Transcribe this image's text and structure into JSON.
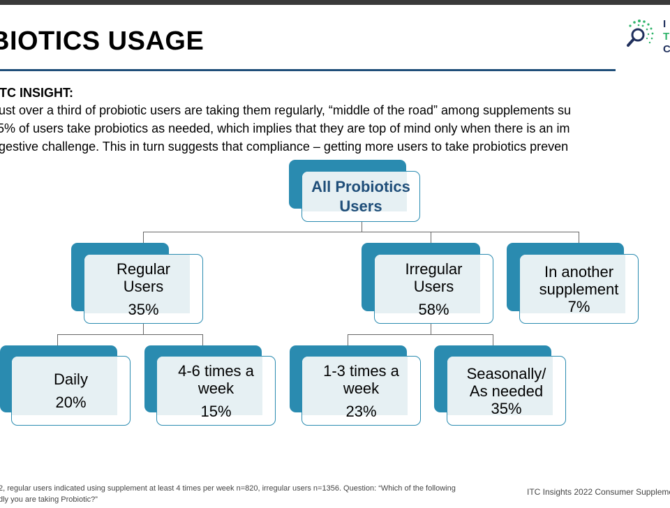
{
  "slide": {
    "title": "BIOTICS USAGE",
    "insight_heading": "ITC INSIGHT:",
    "insight_lines": [
      "ust over a third of probiotic users are taking them regularly, “middle of the road” among supplements su",
      "5% of users take probiotics as needed, which implies that they are top of mind only when there is an im",
      "gestive challenge. This in turn suggests that compliance – getting more users to take probiotics preven"
    ]
  },
  "logo": {
    "icon": "magnifier-dots-icon",
    "letters": [
      "I",
      "T",
      "C"
    ]
  },
  "tree": {
    "root": {
      "lines": [
        "All Probiotics",
        "Users"
      ]
    },
    "regular": {
      "label_lines": [
        "Regular",
        "Users"
      ],
      "value": "35%"
    },
    "irregular": {
      "label_lines": [
        "Irregular",
        "Users"
      ],
      "value": "58%"
    },
    "other": {
      "label_lines": [
        "In another",
        "supplement"
      ],
      "value": "7%"
    },
    "daily": {
      "label_lines": [
        "Daily"
      ],
      "value": "20%"
    },
    "four_six": {
      "label_lines": [
        "4-6 times a",
        "week"
      ],
      "value": "15%"
    },
    "one_three": {
      "label_lines": [
        "1-3 times a",
        "week"
      ],
      "value": "23%"
    },
    "seasonal": {
      "label_lines": [
        "Seasonally/",
        "As needed"
      ],
      "value": "35%"
    }
  },
  "footer": {
    "note_lines": [
      "2, regular users indicated using supplement at least 4 times per week n=820, irregular users n=1356. Question: “Which of the following",
      "dly you are taking Probiotic?”"
    ],
    "source": "ITC Insights 2022 Consumer Suppleme"
  },
  "colors": {
    "accent": "#2a8bb0",
    "title_rule": "#1f4e79",
    "root_text": "#1f4e79",
    "tint": "#e6f0f3"
  }
}
